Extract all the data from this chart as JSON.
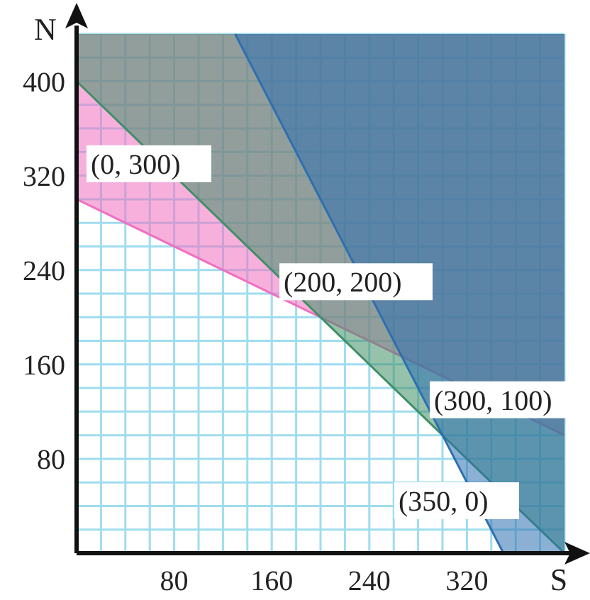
{
  "chart_data": {
    "type": "line",
    "xlabel": "S",
    "ylabel": "N",
    "xlim": [
      0,
      400
    ],
    "ylim": [
      0,
      440
    ],
    "xticks": [
      {
        "value": 20,
        "label": null
      },
      {
        "value": 40,
        "label": null
      },
      {
        "value": 60,
        "label": null
      },
      80,
      {
        "value": 100,
        "label": null
      },
      {
        "value": 120,
        "label": null
      },
      {
        "value": 140,
        "label": null
      },
      160,
      {
        "value": 180,
        "label": null
      },
      {
        "value": 200,
        "label": null
      },
      {
        "value": 220,
        "label": null
      },
      240,
      {
        "value": 260,
        "label": null
      },
      {
        "value": 280,
        "label": null
      },
      {
        "value": 300,
        "label": null
      },
      320,
      {
        "value": 340,
        "label": null
      },
      {
        "value": 360,
        "label": null
      },
      {
        "value": 380,
        "label": null
      },
      {
        "value": 400,
        "label": null
      }
    ],
    "yticks": [
      {
        "value": 20,
        "label": null
      },
      {
        "value": 40,
        "label": null
      },
      {
        "value": 60,
        "label": null
      },
      80,
      {
        "value": 100,
        "label": null
      },
      {
        "value": 120,
        "label": null
      },
      {
        "value": 140,
        "label": null
      },
      160,
      {
        "value": 180,
        "label": null
      },
      {
        "value": 200,
        "label": null
      },
      {
        "value": 220,
        "label": null
      },
      240,
      {
        "value": 260,
        "label": null
      },
      {
        "value": 280,
        "label": null
      },
      {
        "value": 300,
        "label": null
      },
      320,
      {
        "value": 340,
        "label": null
      },
      {
        "value": 360,
        "label": null
      },
      {
        "value": 380,
        "label": null
      },
      400,
      {
        "value": 420,
        "label": null
      },
      {
        "value": 440,
        "label": null
      }
    ],
    "grid": true,
    "marker": "none",
    "line_style": "solid",
    "series": [
      {
        "color": "#f070c0",
        "x": [
          0,
          400
        ],
        "values": [
          300,
          100
        ],
        "lower": [
          300,
          100
        ],
        "upper": [
          440,
          440
        ]
      },
      {
        "color": "#3f8f66",
        "x": [
          0,
          400
        ],
        "values": [
          400,
          0
        ],
        "lower": [
          400,
          0
        ],
        "upper": [
          440,
          440
        ]
      },
      {
        "color": "#2e6fb0",
        "x": [
          130,
          350,
          400
        ],
        "values": [
          440,
          0,
          null
        ],
        "lower": [
          440,
          0,
          0
        ],
        "upper": [
          440,
          440,
          440
        ]
      }
    ],
    "annotations": [
      {
        "text": "(0, 300)",
        "x": 0,
        "y": 300
      },
      {
        "text": "(200, 200)",
        "x": 200,
        "y": 200
      },
      {
        "text": "(300, 100)",
        "x": 300,
        "y": 100
      },
      {
        "text": "(350, 0)",
        "x": 350,
        "y": 0
      }
    ]
  }
}
